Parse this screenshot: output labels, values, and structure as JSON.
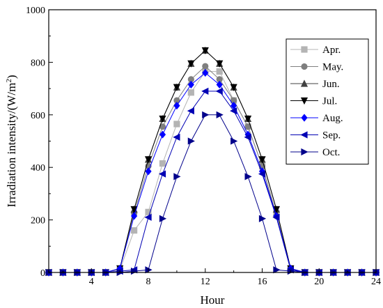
{
  "chart_data": {
    "type": "line",
    "title": "",
    "xlabel": "Hour",
    "ylabel": "Irradiation intensity/(W/m",
    "ylabel_sup": "2",
    "ylabel_close": ")",
    "xlim": [
      1,
      24
    ],
    "ylim": [
      0,
      1000
    ],
    "xticks": [
      4,
      8,
      12,
      16,
      20,
      24
    ],
    "yticks": [
      0,
      200,
      400,
      600,
      800,
      1000
    ],
    "x": [
      1,
      2,
      3,
      4,
      5,
      6,
      7,
      8,
      9,
      10,
      11,
      12,
      13,
      14,
      15,
      16,
      17,
      18,
      19,
      20,
      21,
      22,
      23,
      24
    ],
    "grid": false,
    "legend_position": "top-right",
    "series": [
      {
        "name": "Apr.",
        "color": "#b4b4b4",
        "marker": "square",
        "values": [
          0,
          0,
          0,
          0,
          0,
          10,
          160,
          230,
          415,
          565,
          685,
          765,
          765,
          655,
          555,
          405,
          225,
          10,
          0,
          0,
          0,
          0,
          0,
          0
        ]
      },
      {
        "name": "May.",
        "color": "#7f7f7f",
        "marker": "circle",
        "values": [
          0,
          0,
          0,
          0,
          0,
          15,
          225,
          405,
          555,
          655,
          735,
          785,
          735,
          655,
          555,
          405,
          215,
          15,
          0,
          0,
          0,
          0,
          0,
          0
        ]
      },
      {
        "name": "Jun.",
        "color": "#404040",
        "marker": "triangle-up",
        "values": [
          0,
          0,
          0,
          0,
          0,
          15,
          240,
          430,
          585,
          705,
          795,
          845,
          795,
          705,
          585,
          430,
          240,
          15,
          0,
          0,
          0,
          0,
          0,
          0
        ]
      },
      {
        "name": "Jul.",
        "color": "#000000",
        "marker": "triangle-down",
        "values": [
          0,
          0,
          0,
          0,
          0,
          15,
          240,
          430,
          585,
          705,
          795,
          845,
          795,
          705,
          585,
          430,
          240,
          15,
          0,
          0,
          0,
          0,
          0,
          0
        ]
      },
      {
        "name": "Aug.",
        "color": "#0000ff",
        "marker": "diamond",
        "values": [
          0,
          0,
          0,
          0,
          0,
          15,
          215,
          385,
          525,
          635,
          715,
          760,
          715,
          635,
          525,
          385,
          215,
          15,
          0,
          0,
          0,
          0,
          0,
          0
        ]
      },
      {
        "name": "Sep.",
        "color": "#0000b4",
        "marker": "triangle-left",
        "values": [
          0,
          0,
          0,
          0,
          0,
          5,
          10,
          210,
          375,
          515,
          615,
          690,
          690,
          615,
          515,
          375,
          210,
          10,
          0,
          0,
          0,
          0,
          0,
          0
        ]
      },
      {
        "name": "Oct.",
        "color": "#00008b",
        "marker": "triangle-right",
        "values": [
          0,
          0,
          0,
          0,
          0,
          0,
          5,
          10,
          205,
          365,
          500,
          600,
          600,
          500,
          365,
          205,
          10,
          5,
          0,
          0,
          0,
          0,
          0,
          0
        ]
      }
    ]
  }
}
